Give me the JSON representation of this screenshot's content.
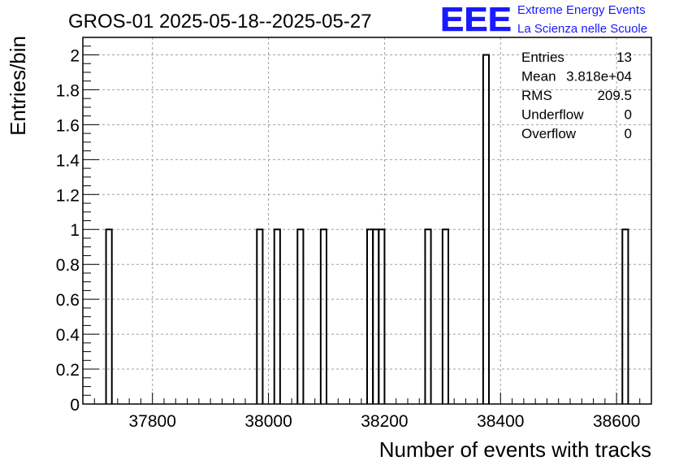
{
  "chart_data": {
    "type": "bar",
    "title": "GROS-01 2025-05-18--2025-05-27",
    "xlabel": "Number of events with tracks",
    "ylabel": "Entries/bin",
    "xlim": [
      37680,
      38660
    ],
    "ylim": [
      0,
      2.1
    ],
    "bin_width": 10,
    "x_ticks": [
      37800,
      38000,
      38200,
      38400,
      38600
    ],
    "y_ticks": [
      0,
      0.2,
      0.4,
      0.6,
      0.8,
      1,
      1.2,
      1.4,
      1.6,
      1.8,
      2
    ],
    "y_tick_labels": [
      "0",
      "0.2",
      "0.4",
      "0.6",
      "0.8",
      "1",
      "1.2",
      "1.4",
      "1.6",
      "1.8",
      "2"
    ],
    "grid": true,
    "bins": [
      {
        "x": 37720,
        "count": 1
      },
      {
        "x": 37980,
        "count": 1
      },
      {
        "x": 38010,
        "count": 1
      },
      {
        "x": 38050,
        "count": 1
      },
      {
        "x": 38090,
        "count": 1
      },
      {
        "x": 38170,
        "count": 1
      },
      {
        "x": 38180,
        "count": 1
      },
      {
        "x": 38190,
        "count": 1
      },
      {
        "x": 38270,
        "count": 1
      },
      {
        "x": 38300,
        "count": 1
      },
      {
        "x": 38370,
        "count": 2
      },
      {
        "x": 38610,
        "count": 1
      }
    ],
    "stats": [
      {
        "label": "Entries",
        "value": "13"
      },
      {
        "label": "Mean",
        "value": "3.818e+04"
      },
      {
        "label": "RMS",
        "value": "209.5"
      },
      {
        "label": "Underflow",
        "value": "0"
      },
      {
        "label": "Overflow",
        "value": "0"
      }
    ]
  },
  "logo": {
    "mark": "EEE",
    "line1": "Extreme Energy Events",
    "line2": "La Scienza nelle Scuole",
    "color": "#1a1aff"
  }
}
